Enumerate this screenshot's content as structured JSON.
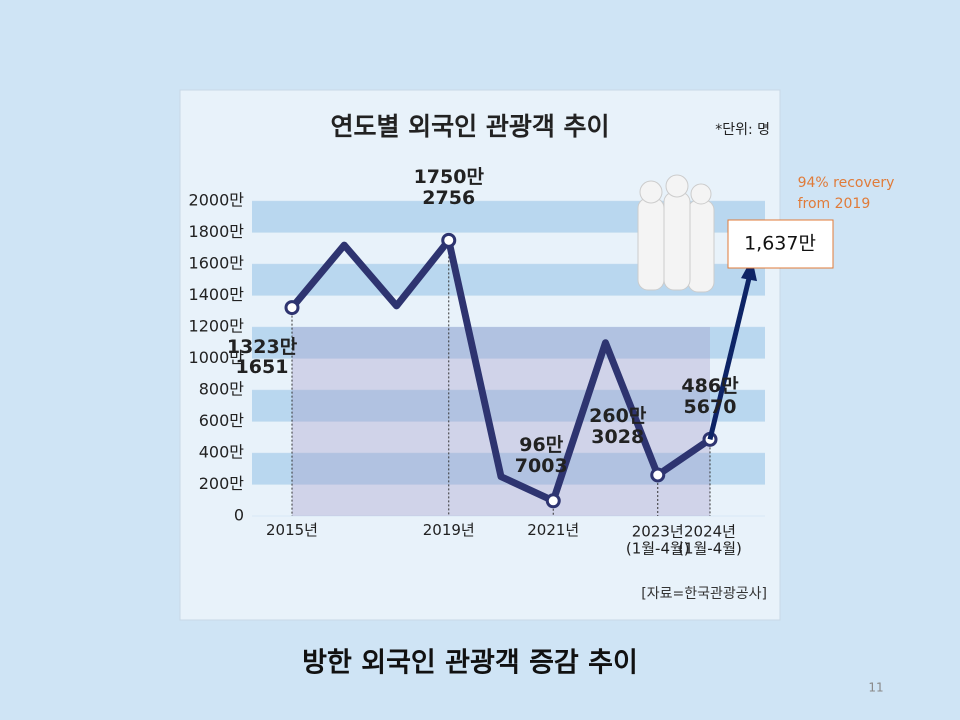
{
  "chart_data": {
    "type": "line",
    "title": "연도별 외국인 관광객 추이",
    "unit_note": "*단위: 명",
    "source": "[자료=한국관광공사]",
    "categories": [
      "2015년",
      null,
      null,
      "2019년",
      null,
      "2021년",
      null,
      "2023년\n(1월-4월)",
      "2024년\n(1월-4월)"
    ],
    "series": [
      {
        "name": "외국인 관광객",
        "color": "#2e3470",
        "values": [
          1323.1651,
          1720,
          1334,
          1750.2756,
          250,
          96.7003,
          1100,
          260.3028,
          486.567
        ],
        "value_labels": [
          "1323만\n1651",
          null,
          null,
          "1750만\n2756",
          null,
          "96만\n7003",
          null,
          "260만\n3028",
          "486만\n5670"
        ]
      }
    ],
    "ylim": [
      0,
      2000
    ],
    "yticks": [
      0,
      {
        "value": 200,
        "label": "200만"
      },
      {
        "value": 400,
        "label": "400만"
      },
      {
        "value": 600,
        "label": "600만"
      },
      {
        "value": 800,
        "label": "800만"
      },
      {
        "value": 1000,
        "label": "1000만"
      },
      {
        "value": 1200,
        "label": "1200만"
      },
      {
        "value": 1400,
        "label": "1400만"
      },
      {
        "value": 1600,
        "label": "1600만"
      },
      {
        "value": 1800,
        "label": "1800만"
      },
      {
        "value": 2000,
        "label": "2000만"
      }
    ],
    "projection": {
      "value": 1637,
      "label": "1,637만",
      "note": "94% recovery\nfrom 2019",
      "color": "#0d2466",
      "note_color": "#e07b39"
    }
  },
  "slide": {
    "caption": "방한 외국인 관광객 증감 추이",
    "page_number": "11"
  }
}
